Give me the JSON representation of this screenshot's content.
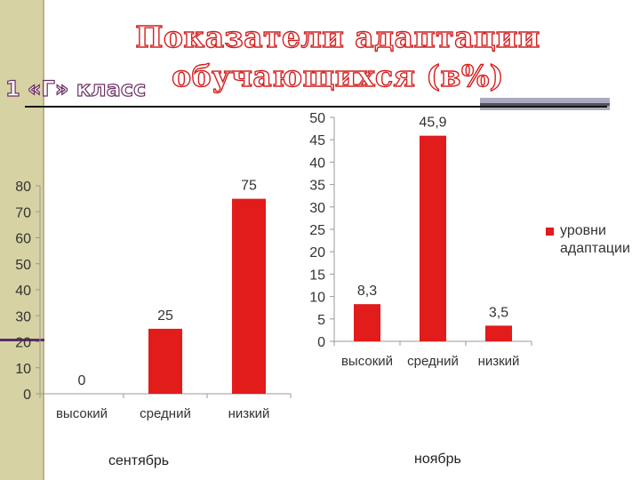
{
  "title_lines": [
    "Показатели адаптации",
    "обучающихся (в%)"
  ],
  "subtitle": "1 «Г» класс",
  "colors": {
    "bar": "#e21b1b",
    "title": "#d42020",
    "subtitle": "#6b2e66",
    "left_bar": "#d6d2a3"
  },
  "legend": {
    "label": "уровни адаптации"
  },
  "captions": {
    "left": "сентябрь",
    "right": "ноябрь"
  },
  "chart_data": [
    {
      "type": "bar",
      "categories": [
        "высокий",
        "средний",
        "низкий"
      ],
      "values": [
        0,
        25,
        75
      ],
      "value_labels": [
        "0",
        "25",
        "75"
      ],
      "ylim": [
        0,
        80
      ],
      "yticks": [
        0,
        10,
        20,
        30,
        40,
        50,
        60,
        70,
        80
      ],
      "grid": false,
      "caption": "сентябрь"
    },
    {
      "type": "bar",
      "categories": [
        "высокий",
        "средний",
        "низкий"
      ],
      "values": [
        8.3,
        45.9,
        3.5
      ],
      "value_labels": [
        "8,3",
        "45,9",
        "3,5"
      ],
      "ylim": [
        0,
        50
      ],
      "yticks": [
        0,
        5,
        10,
        15,
        20,
        25,
        30,
        35,
        40,
        45,
        50
      ],
      "grid": false,
      "legend": "уровни адаптации",
      "legend_position": "right",
      "caption": "ноябрь"
    }
  ]
}
